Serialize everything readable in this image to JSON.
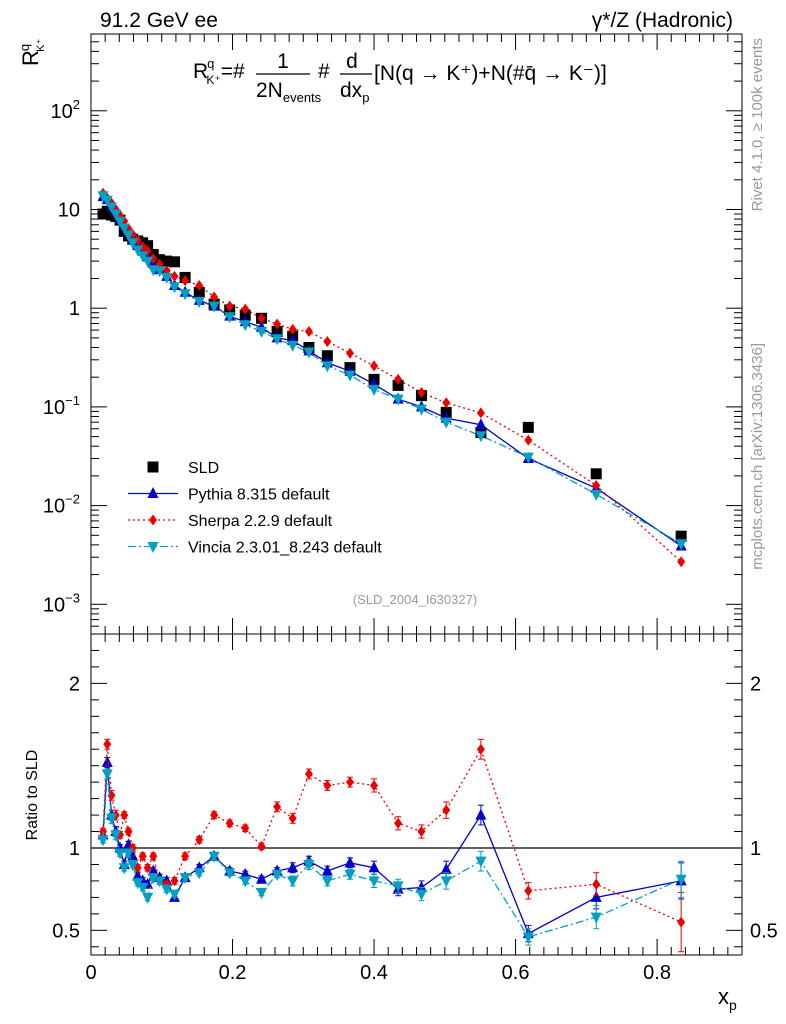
{
  "header": {
    "left": "91.2 GeV ee",
    "right": "γ*/Z (Hadronic)"
  },
  "side_labels": {
    "rivet": "Rivet 4.1.0, ≥ 100k events",
    "mcplots": "mcplots.cern.ch [arXiv:1306.3436]"
  },
  "chart_data": [
    {
      "type": "scatter",
      "panel": "main",
      "yscale": "log",
      "xlim": [
        0,
        0.92
      ],
      "ylim": [
        0.0005,
        600
      ],
      "xlabel": "x_p",
      "ylabel": {
        "base": "R",
        "sup": "q",
        "sub": "K⁺"
      },
      "formula": {
        "lhs_base": "R",
        "lhs_sup": "q",
        "lhs_sub": "K⁺",
        "eq": "=#",
        "frac1_num": "1",
        "frac1_den_base": "2N",
        "frac1_den_sub": "events",
        "hash": "#",
        "frac2_num": "d",
        "frac2_den_base": "dx",
        "frac2_den_sub": "p",
        "rest": "[N(q → K⁺)+N(#q̄ → K⁻)]"
      },
      "y_tick_labels": [
        {
          "v": 0.001,
          "base": "10",
          "exp": "−3"
        },
        {
          "v": 0.01,
          "base": "10",
          "exp": "−2"
        },
        {
          "v": 0.1,
          "base": "10",
          "exp": "−1"
        },
        {
          "v": 1,
          "base": "1",
          "exp": ""
        },
        {
          "v": 10,
          "base": "10",
          "exp": ""
        },
        {
          "v": 100,
          "base": "10",
          "exp": "2"
        }
      ],
      "watermark": "(SLD_2004_I630327)",
      "legend_position": "lower-left",
      "x": [
        0.017,
        0.023,
        0.029,
        0.035,
        0.041,
        0.047,
        0.053,
        0.059,
        0.066,
        0.073,
        0.08,
        0.088,
        0.097,
        0.107,
        0.118,
        0.133,
        0.153,
        0.174,
        0.196,
        0.218,
        0.241,
        0.263,
        0.285,
        0.308,
        0.334,
        0.366,
        0.4,
        0.434,
        0.467,
        0.502,
        0.551,
        0.618,
        0.714,
        0.834
      ],
      "series": [
        {
          "name": "SLD",
          "color": "#000000",
          "marker": "square",
          "values": [
            9.0,
            9.6,
            8.8,
            8.5,
            7.8,
            6.0,
            5.4,
            5.0,
            4.8,
            4.6,
            4.3,
            3.5,
            3.1,
            3.0,
            2.95,
            2.05,
            1.45,
            1.1,
            0.96,
            0.85,
            0.79,
            0.58,
            0.52,
            0.4,
            0.33,
            0.25,
            0.19,
            0.165,
            0.13,
            0.088,
            0.055,
            0.062,
            0.021,
            0.0049
          ]
        },
        {
          "name": "Pythia 8.315 default",
          "color": "#0000cc",
          "marker": "triangle-up",
          "line": "solid",
          "values": [
            13.5,
            12.6,
            11.0,
            9.4,
            8.0,
            6.9,
            5.9,
            4.9,
            4.3,
            3.8,
            3.3,
            2.85,
            2.45,
            2.1,
            1.7,
            1.45,
            1.2,
            1.05,
            0.83,
            0.73,
            0.64,
            0.5,
            0.47,
            0.37,
            0.28,
            0.23,
            0.17,
            0.12,
            0.1,
            0.077,
            0.066,
            0.03,
            0.015,
            0.0039
          ]
        },
        {
          "name": "Sherpa 2.2.9 default",
          "color": "#ee0000",
          "marker": "diamond",
          "line": "dotted",
          "values": [
            14.6,
            13.0,
            11.6,
            10.0,
            8.7,
            7.6,
            6.4,
            5.6,
            4.9,
            4.2,
            3.8,
            3.2,
            2.8,
            2.4,
            2.1,
            1.9,
            1.7,
            1.3,
            1.05,
            0.98,
            0.79,
            0.69,
            0.61,
            0.58,
            0.46,
            0.35,
            0.26,
            0.19,
            0.14,
            0.11,
            0.087,
            0.046,
            0.016,
            0.0027
          ]
        },
        {
          "name": "Vincia 2.3.01_8.243 default",
          "color": "#00a0c0",
          "marker": "triangle-down",
          "line": "dashdot",
          "values": [
            13.8,
            12.4,
            10.6,
            9.0,
            7.6,
            6.5,
            5.5,
            4.6,
            3.9,
            3.4,
            3.0,
            2.45,
            2.4,
            2.05,
            1.65,
            1.4,
            1.17,
            1.05,
            0.82,
            0.68,
            0.58,
            0.49,
            0.42,
            0.36,
            0.26,
            0.21,
            0.15,
            0.12,
            0.095,
            0.07,
            0.051,
            0.031,
            0.013,
            0.0041
          ]
        }
      ]
    },
    {
      "type": "scatter",
      "panel": "ratio",
      "ylabel": "Ratio to SLD",
      "xlabel": "x_p",
      "xlim": [
        0,
        0.92
      ],
      "ylim": [
        0.35,
        2.3
      ],
      "y_ticks": [
        0.5,
        1,
        2
      ],
      "y_tick_labels": [
        "0.5",
        "1",
        "2"
      ],
      "x_ticks": [
        0,
        0.2,
        0.4,
        0.6,
        0.8
      ],
      "x_tick_labels": [
        "0",
        "0.2",
        "0.4",
        "0.6",
        "0.8"
      ],
      "reference_line": 1,
      "x": [
        0.017,
        0.023,
        0.029,
        0.035,
        0.041,
        0.047,
        0.053,
        0.059,
        0.066,
        0.073,
        0.08,
        0.088,
        0.097,
        0.107,
        0.118,
        0.133,
        0.153,
        0.174,
        0.196,
        0.218,
        0.241,
        0.263,
        0.285,
        0.308,
        0.334,
        0.366,
        0.4,
        0.434,
        0.467,
        0.502,
        0.551,
        0.618,
        0.714,
        0.834
      ],
      "series": [
        {
          "name": "Pythia 8.315 default",
          "color": "#0000cc",
          "marker": "triangle-up",
          "line": "solid",
          "values": [
            1.08,
            1.52,
            1.2,
            1.1,
            1.0,
            0.9,
            1.02,
            0.95,
            0.83,
            0.8,
            0.78,
            0.86,
            0.82,
            0.8,
            0.7,
            0.82,
            0.88,
            0.95,
            0.86,
            0.84,
            0.81,
            0.86,
            0.88,
            0.92,
            0.86,
            0.91,
            0.88,
            0.75,
            0.76,
            0.87,
            1.2,
            0.48,
            0.7,
            0.8
          ],
          "errors": [
            0.02,
            0.03,
            0.03,
            0.03,
            0.02,
            0.02,
            0.02,
            0.02,
            0.02,
            0.02,
            0.02,
            0.02,
            0.02,
            0.02,
            0.02,
            0.02,
            0.02,
            0.02,
            0.02,
            0.02,
            0.02,
            0.02,
            0.03,
            0.03,
            0.03,
            0.03,
            0.04,
            0.04,
            0.04,
            0.05,
            0.06,
            0.05,
            0.07,
            0.11
          ]
        },
        {
          "name": "Sherpa 2.2.9 default",
          "color": "#ee0000",
          "marker": "diamond",
          "line": "dotted",
          "values": [
            1.1,
            1.63,
            1.32,
            1.2,
            1.08,
            1.2,
            1.1,
            1.0,
            0.88,
            0.95,
            0.88,
            0.95,
            0.8,
            0.78,
            0.8,
            0.95,
            1.05,
            1.2,
            1.15,
            1.12,
            1.01,
            1.25,
            1.18,
            1.45,
            1.38,
            1.4,
            1.38,
            1.15,
            1.1,
            1.23,
            1.6,
            0.74,
            0.78,
            0.55
          ],
          "errors": [
            0.02,
            0.03,
            0.03,
            0.03,
            0.02,
            0.02,
            0.02,
            0.02,
            0.02,
            0.02,
            0.02,
            0.02,
            0.02,
            0.02,
            0.02,
            0.02,
            0.02,
            0.02,
            0.02,
            0.02,
            0.02,
            0.03,
            0.03,
            0.03,
            0.03,
            0.03,
            0.04,
            0.04,
            0.04,
            0.05,
            0.06,
            0.05,
            0.07,
            0.18
          ]
        },
        {
          "name": "Vincia 2.3.01_8.243 default",
          "color": "#00a0c0",
          "marker": "triangle-down",
          "line": "dashdot",
          "values": [
            1.05,
            1.45,
            1.18,
            1.08,
            0.97,
            0.88,
            0.97,
            0.9,
            0.79,
            0.76,
            0.7,
            0.82,
            0.8,
            0.75,
            0.72,
            0.82,
            0.85,
            0.95,
            0.85,
            0.8,
            0.73,
            0.84,
            0.8,
            0.9,
            0.8,
            0.84,
            0.8,
            0.77,
            0.72,
            0.8,
            0.92,
            0.46,
            0.58,
            0.81
          ],
          "errors": [
            0.02,
            0.03,
            0.03,
            0.03,
            0.02,
            0.02,
            0.02,
            0.02,
            0.02,
            0.02,
            0.02,
            0.02,
            0.02,
            0.02,
            0.02,
            0.02,
            0.02,
            0.02,
            0.02,
            0.02,
            0.02,
            0.02,
            0.03,
            0.03,
            0.03,
            0.03,
            0.04,
            0.04,
            0.04,
            0.05,
            0.06,
            0.05,
            0.07,
            0.11
          ]
        }
      ]
    }
  ]
}
